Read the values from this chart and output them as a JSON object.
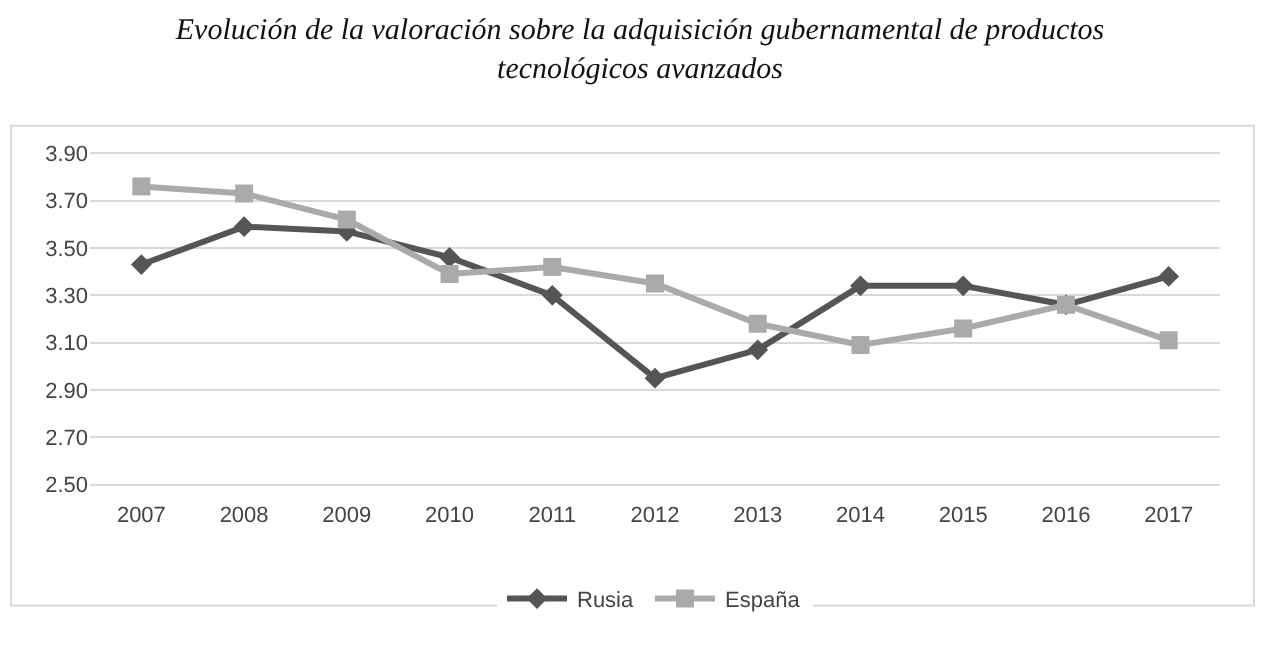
{
  "chart_data": {
    "type": "line",
    "title": "Evolución de la valoración sobre la adquisición gubernamental de productos tecnológicos avanzados",
    "categories": [
      "2007",
      "2008",
      "2009",
      "2010",
      "2011",
      "2012",
      "2013",
      "2014",
      "2015",
      "2016",
      "2017"
    ],
    "series": [
      {
        "name": "Rusia",
        "color": "#555555",
        "marker": "diamond",
        "values": [
          3.43,
          3.59,
          3.57,
          3.46,
          3.3,
          2.95,
          3.07,
          3.34,
          3.34,
          3.26,
          3.38
        ]
      },
      {
        "name": "España",
        "color": "#aaaaaa",
        "marker": "square",
        "values": [
          3.76,
          3.73,
          3.62,
          3.39,
          3.42,
          3.35,
          3.18,
          3.09,
          3.16,
          3.26,
          3.11
        ]
      }
    ],
    "ylim": [
      2.5,
      3.9
    ],
    "yticks": [
      {
        "value": 2.5,
        "label": "2.50"
      },
      {
        "value": 2.7,
        "label": "2.70"
      },
      {
        "value": 2.9,
        "label": "2.90"
      },
      {
        "value": 3.1,
        "label": "3.10"
      },
      {
        "value": 3.3,
        "label": "3.30"
      },
      {
        "value": 3.5,
        "label": "3.50"
      },
      {
        "value": 3.7,
        "label": "3.70"
      },
      {
        "value": 3.9,
        "label": "3.90"
      }
    ],
    "grid": "y",
    "legend": "bottom",
    "line_style": "solid"
  }
}
